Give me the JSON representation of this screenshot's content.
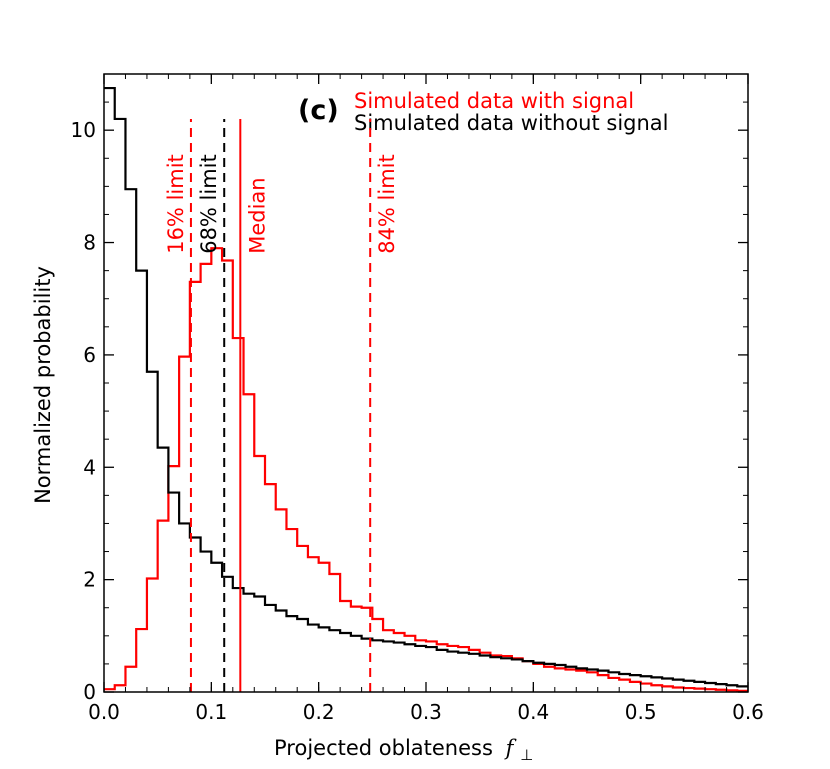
{
  "chart_data": {
    "type": "histogram",
    "panel_label": "(c)",
    "xlabel": "Projected oblateness",
    "xlabel_symbol": "f",
    "xlabel_subscript": "⊥",
    "ylabel": "Normalized probability",
    "xlim": [
      0.0,
      0.6
    ],
    "ylim": [
      0,
      11.0
    ],
    "xticks": [
      0.0,
      0.1,
      0.2,
      0.3,
      0.4,
      0.5,
      0.6
    ],
    "xtick_labels": [
      "0.0",
      "0.1",
      "0.2",
      "0.3",
      "0.4",
      "0.5",
      "0.6"
    ],
    "yticks": [
      0,
      2,
      4,
      6,
      8,
      10
    ],
    "ytick_labels": [
      "0",
      "2",
      "4",
      "6",
      "8",
      "10"
    ],
    "bin_width": 0.01,
    "legend": [
      {
        "label": "Simulated data with signal",
        "color": "#ff0000"
      },
      {
        "label": "Simulated data without signal",
        "color": "#000000"
      }
    ],
    "series": [
      {
        "name": "Simulated data with signal",
        "color": "#ff0000",
        "values": [
          0.05,
          0.12,
          0.45,
          1.12,
          2.02,
          3.05,
          4.02,
          5.97,
          7.3,
          7.62,
          7.9,
          7.68,
          6.3,
          5.3,
          4.2,
          3.7,
          3.25,
          2.9,
          2.6,
          2.4,
          2.3,
          2.1,
          1.62,
          1.52,
          1.5,
          1.3,
          1.1,
          1.05,
          1.0,
          0.92,
          0.9,
          0.85,
          0.82,
          0.8,
          0.75,
          0.7,
          0.65,
          0.64,
          0.6,
          0.55,
          0.5,
          0.45,
          0.42,
          0.4,
          0.38,
          0.35,
          0.3,
          0.25,
          0.22,
          0.18,
          0.15,
          0.12,
          0.1,
          0.08,
          0.07,
          0.06,
          0.05,
          0.04,
          0.03,
          0.02
        ]
      },
      {
        "name": "Simulated data without signal",
        "color": "#000000",
        "values": [
          10.75,
          10.2,
          8.95,
          7.5,
          5.7,
          4.35,
          3.55,
          3.0,
          2.75,
          2.5,
          2.3,
          2.05,
          1.85,
          1.75,
          1.7,
          1.55,
          1.45,
          1.35,
          1.3,
          1.2,
          1.15,
          1.1,
          1.05,
          1.0,
          0.95,
          0.92,
          0.9,
          0.88,
          0.85,
          0.82,
          0.8,
          0.75,
          0.72,
          0.7,
          0.68,
          0.65,
          0.62,
          0.6,
          0.58,
          0.55,
          0.52,
          0.5,
          0.48,
          0.45,
          0.42,
          0.4,
          0.38,
          0.35,
          0.32,
          0.3,
          0.28,
          0.26,
          0.24,
          0.22,
          0.2,
          0.18,
          0.16,
          0.14,
          0.12,
          0.1
        ]
      }
    ],
    "vlines": [
      {
        "name": "16% limit",
        "x": 0.081,
        "color": "#ff0000",
        "style": "dashed",
        "label": "16% limit"
      },
      {
        "name": "68% limit",
        "x": 0.112,
        "color": "#000000",
        "style": "dashed",
        "label": "68% limit"
      },
      {
        "name": "Median",
        "x": 0.127,
        "color": "#ff0000",
        "style": "solid",
        "label": "Median"
      },
      {
        "name": "84% limit",
        "x": 0.248,
        "color": "#ff0000",
        "style": "dashed",
        "label": "84% limit"
      }
    ]
  }
}
